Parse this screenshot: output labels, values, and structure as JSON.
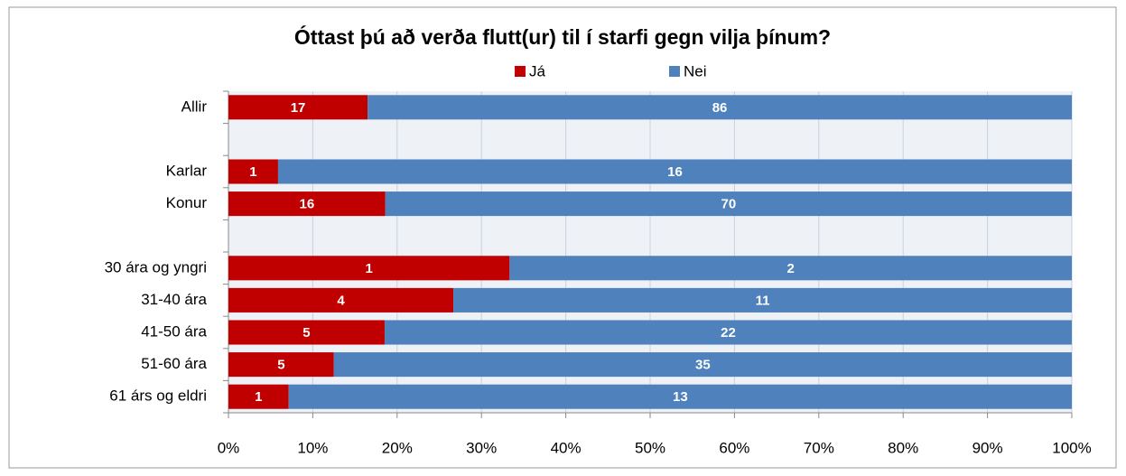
{
  "chart_data": {
    "type": "bar",
    "orientation": "horizontal",
    "stacking": "percent",
    "title": "Óttast þú að verða flutt(ur) til í starfi gegn vilja þínum?",
    "categories": [
      "Allir",
      null,
      "Karlar",
      "Konur",
      null,
      "30 ára og yngri",
      "31-40 ára",
      "41-50 ára",
      "51-60 ára",
      "61 árs og eldri"
    ],
    "series": [
      {
        "name": "Já",
        "color": "#c00000",
        "values": [
          17,
          null,
          1,
          16,
          null,
          1,
          4,
          5,
          5,
          1
        ]
      },
      {
        "name": "Nei",
        "color": "#4f81bd",
        "values": [
          86,
          null,
          16,
          70,
          null,
          2,
          11,
          22,
          35,
          13
        ]
      }
    ],
    "xlim": [
      0,
      100
    ],
    "xticks": [
      {
        "value": 0,
        "label": "0%"
      },
      {
        "value": 10,
        "label": "10%"
      },
      {
        "value": 20,
        "label": "20%"
      },
      {
        "value": 30,
        "label": "30%"
      },
      {
        "value": 40,
        "label": "40%"
      },
      {
        "value": 50,
        "label": "50%"
      },
      {
        "value": 60,
        "label": "60%"
      },
      {
        "value": 70,
        "label": "70%"
      },
      {
        "value": 80,
        "label": "80%"
      },
      {
        "value": 90,
        "label": "90%"
      },
      {
        "value": 100,
        "label": "100%"
      }
    ],
    "grid": true,
    "legend": "top"
  }
}
